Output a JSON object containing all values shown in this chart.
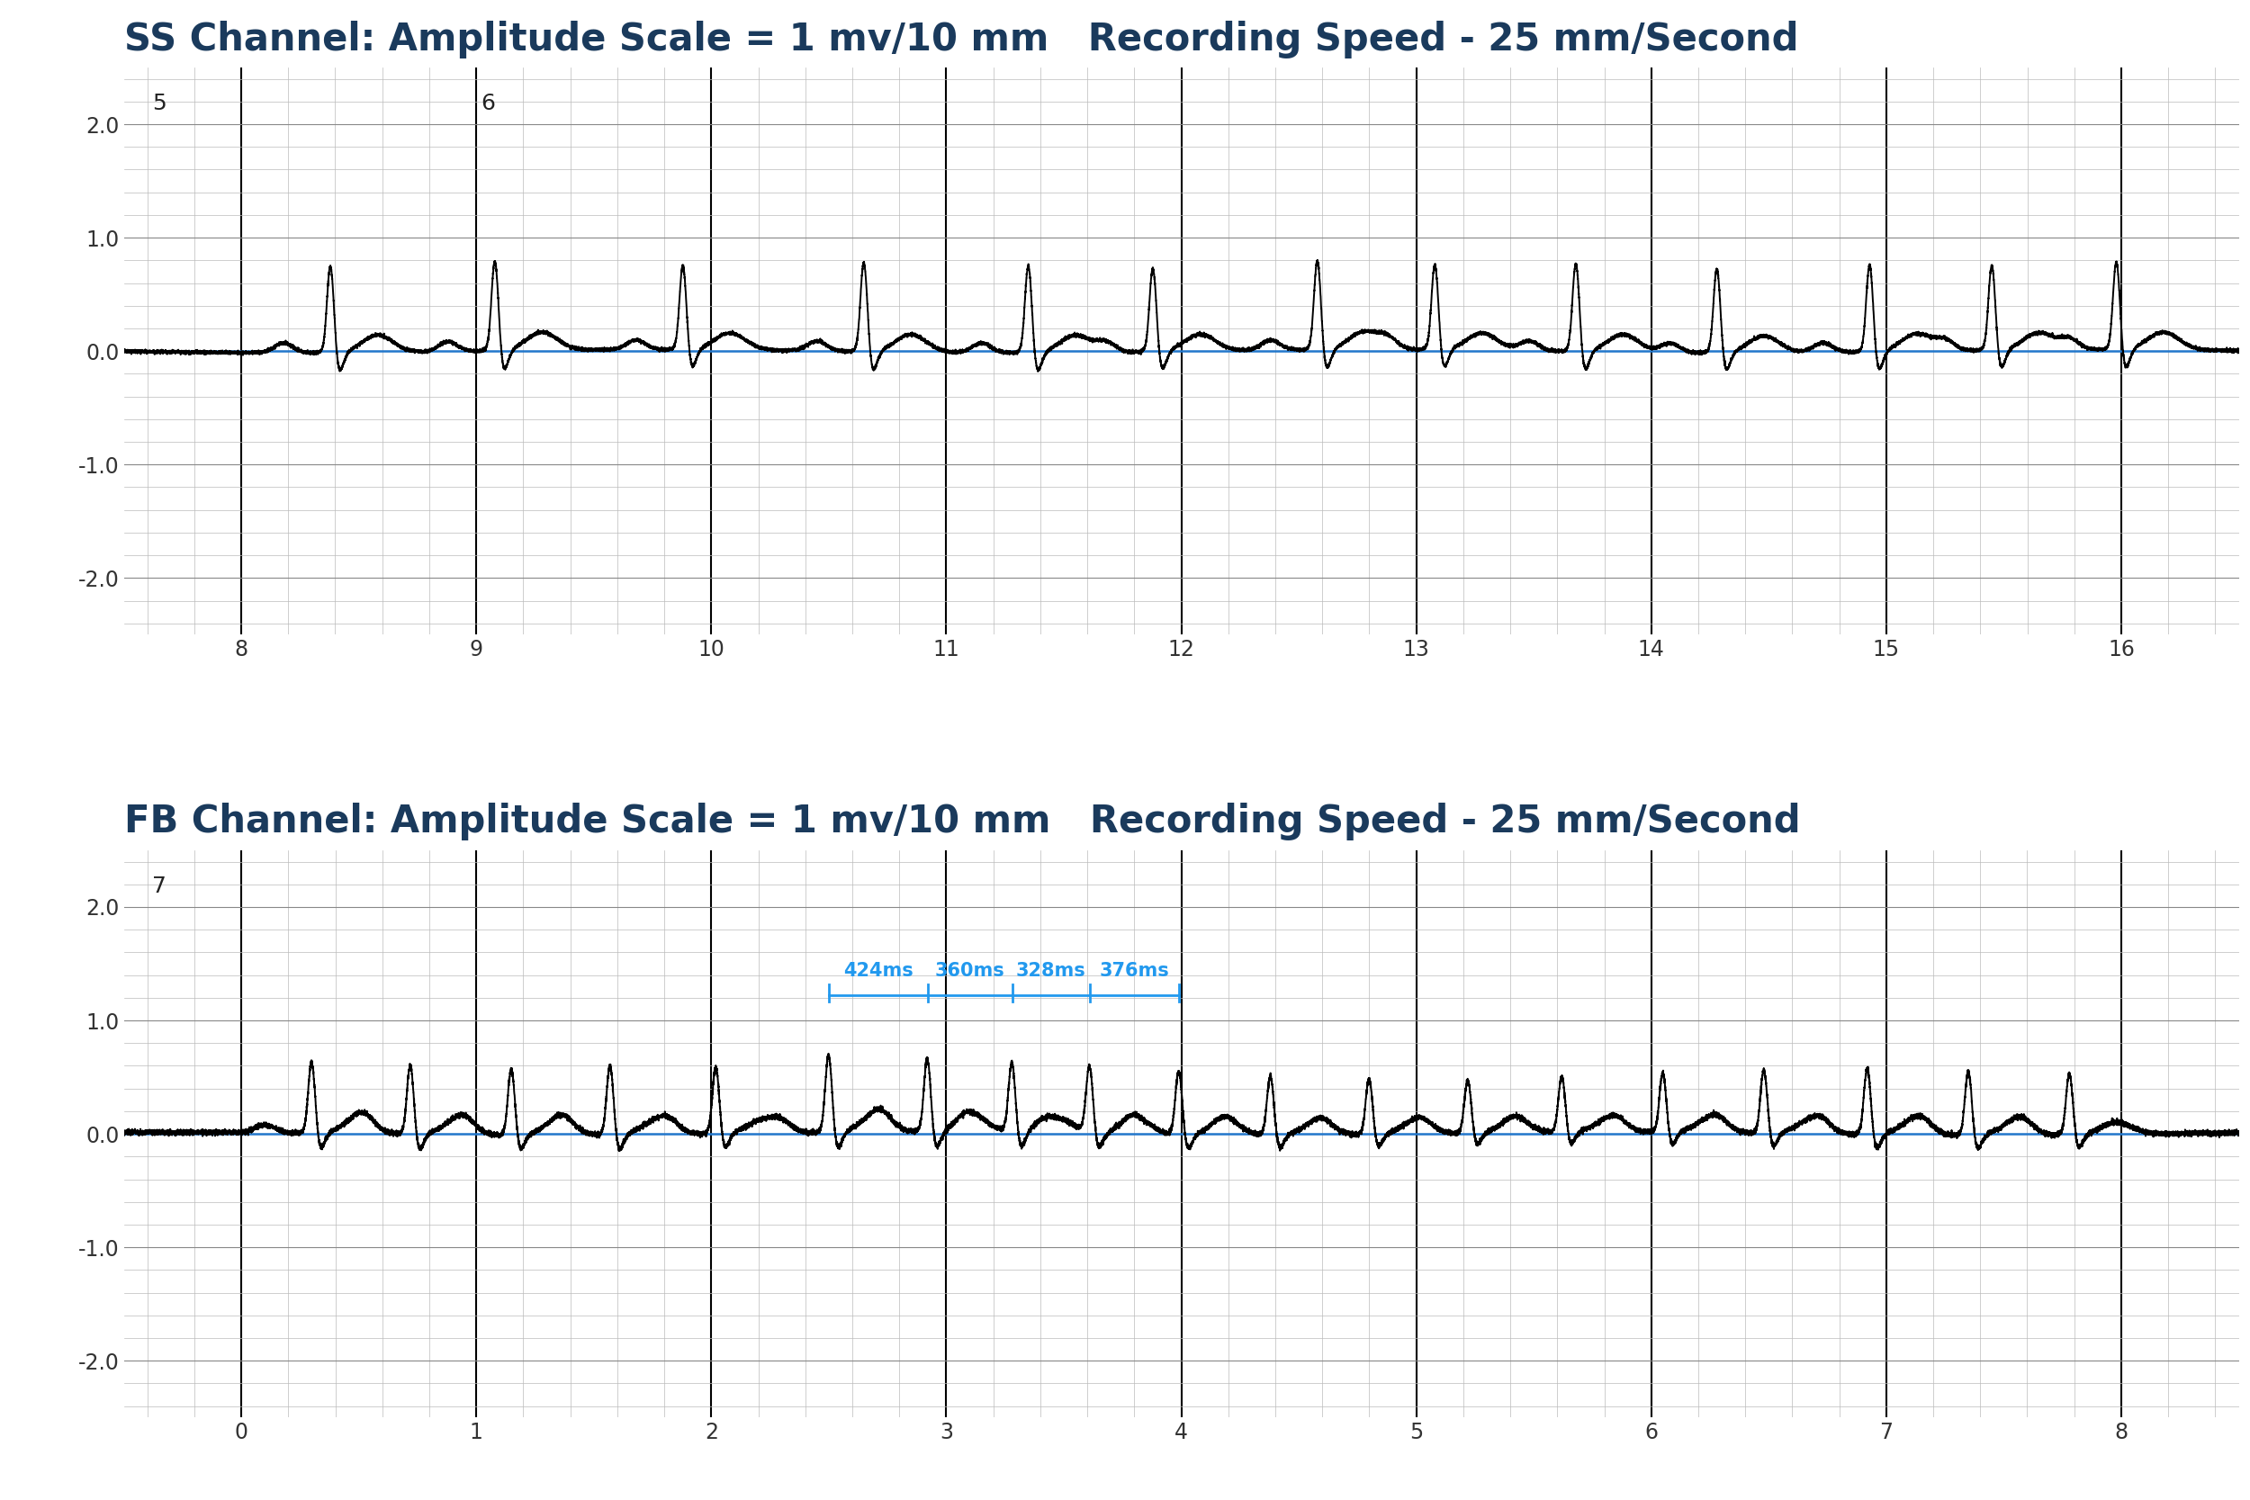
{
  "title_ss": "SS Channel: Amplitude Scale = 1 mv/10 mm   Recording Speed - 25 mm/Second",
  "title_fb": "FB Channel: Amplitude Scale = 1 mv/10 mm   Recording Speed - 25 mm/Second",
  "title_color": "#1a3a5c",
  "title_fontsize": 30,
  "background_color": "#ffffff",
  "grid_minor_color": "#bbbbbb",
  "grid_major_color": "#888888",
  "grid_integer_color": "#000000",
  "ecg_color": "#000000",
  "baseline_color": "#2277cc",
  "ylim": [
    -2.5,
    2.5
  ],
  "yticks": [
    -2.0,
    -1.0,
    0.0,
    1.0,
    2.0
  ],
  "ss_xlim": [
    7.5,
    16.5
  ],
  "ss_xticks": [
    8,
    9,
    10,
    11,
    12,
    13,
    14,
    15,
    16
  ],
  "fb_xlim": [
    -0.5,
    8.5
  ],
  "fb_xticks": [
    0,
    1,
    2,
    3,
    4,
    5,
    6,
    7,
    8
  ],
  "label_5": "5",
  "label_6": "6",
  "label_7": "7",
  "interval_labels": [
    "424ms",
    "360ms",
    "328ms",
    "376ms"
  ],
  "interval_color": "#2299ee",
  "ss_beats": [
    8.38,
    9.08,
    9.88,
    10.65,
    11.35,
    11.88,
    12.58,
    13.08,
    13.68,
    14.28,
    14.93,
    15.45,
    15.98
  ],
  "ss_amps": [
    0.85,
    0.88,
    0.82,
    0.87,
    0.85,
    0.82,
    0.87,
    0.83,
    0.86,
    0.82,
    0.85,
    0.83,
    0.86
  ],
  "fb_beats": [
    0.3,
    0.72,
    1.15,
    1.57,
    2.02,
    2.5,
    2.92,
    3.28,
    3.61,
    3.99,
    4.38,
    4.8,
    5.22,
    5.62,
    6.05,
    6.48,
    6.92,
    7.35,
    7.78
  ],
  "fb_amps": [
    0.7,
    0.68,
    0.65,
    0.68,
    0.65,
    0.75,
    0.72,
    0.68,
    0.65,
    0.62,
    0.58,
    0.55,
    0.52,
    0.55,
    0.58,
    0.62,
    0.65,
    0.62,
    0.6
  ],
  "interval_beat_starts": [
    2.5,
    2.92,
    3.28,
    3.61
  ],
  "interval_beat_ends": [
    2.92,
    3.28,
    3.61,
    3.99
  ]
}
